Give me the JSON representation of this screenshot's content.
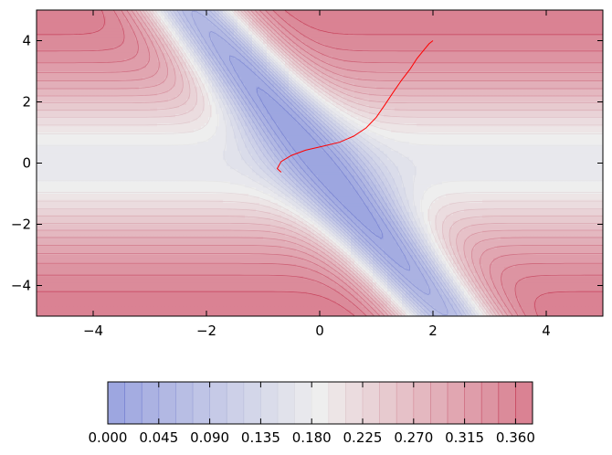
{
  "chart_data": {
    "type": "contourf",
    "title": "",
    "xlabel": "",
    "ylabel": "",
    "xlim": [
      -5,
      5
    ],
    "ylim": [
      -5,
      5
    ],
    "grid": false,
    "x_ticks": [
      -4,
      -2,
      0,
      2,
      4
    ],
    "x_tick_labels": [
      "−4",
      "−2",
      "0",
      "2",
      "4"
    ],
    "y_ticks": [
      -4,
      -2,
      0,
      2,
      4
    ],
    "y_tick_labels": [
      "−4",
      "−2",
      "0",
      "2",
      "4"
    ],
    "colormap": "coolwarm",
    "colormap_low": "#3b4cc0",
    "colormap_mid": "#dddcdc",
    "colormap_high": "#b40426",
    "fill_alpha": 0.5,
    "contour_levels": [
      0.0,
      0.015,
      0.03,
      0.045,
      0.06,
      0.075,
      0.09,
      0.105,
      0.12,
      0.135,
      0.15,
      0.165,
      0.18,
      0.195,
      0.21,
      0.225,
      0.24,
      0.255,
      0.27,
      0.285,
      0.3,
      0.315,
      0.33,
      0.345,
      0.36,
      0.375
    ],
    "colorbar": {
      "orientation": "horizontal",
      "placement": "bottom",
      "tick_values": [
        0.0,
        0.045,
        0.09,
        0.135,
        0.18,
        0.225,
        0.27,
        0.315,
        0.36
      ],
      "tick_labels": [
        "0.000",
        "0.045",
        "0.090",
        "0.135",
        "0.180",
        "0.225",
        "0.270",
        "0.315",
        "0.360"
      ]
    },
    "trajectory": {
      "color": "#ff0000",
      "points": [
        [
          2.0,
          4.0
        ],
        [
          1.93,
          3.9
        ],
        [
          1.85,
          3.72
        ],
        [
          1.72,
          3.42
        ],
        [
          1.6,
          3.08
        ],
        [
          1.45,
          2.72
        ],
        [
          1.3,
          2.32
        ],
        [
          1.15,
          1.9
        ],
        [
          1.0,
          1.5
        ],
        [
          0.82,
          1.15
        ],
        [
          0.6,
          0.88
        ],
        [
          0.35,
          0.68
        ],
        [
          0.05,
          0.55
        ],
        [
          -0.25,
          0.42
        ],
        [
          -0.5,
          0.25
        ],
        [
          -0.68,
          0.05
        ],
        [
          -0.75,
          -0.18
        ],
        [
          -0.68,
          -0.3
        ]
      ]
    }
  }
}
